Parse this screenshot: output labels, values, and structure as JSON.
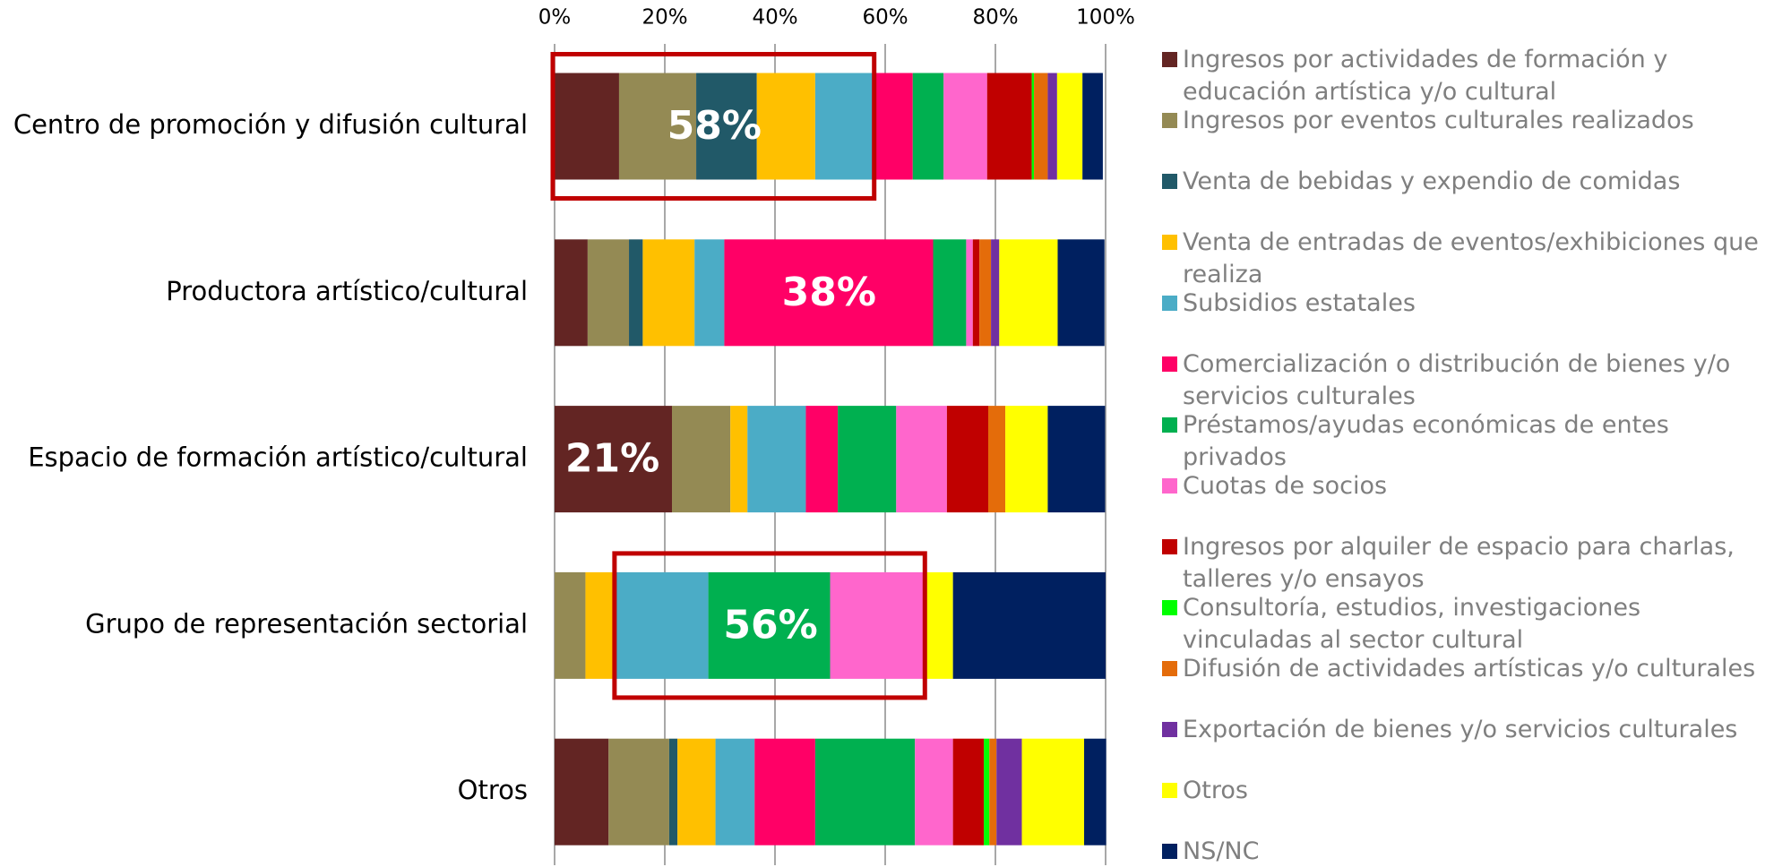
{
  "chart_data": {
    "type": "stacked_barh",
    "categories": [
      "Centro de promoción y difusión cultural",
      "Productora artístico/cultural",
      "Espacio de formación artístico/cultural",
      "Grupo de representación sectorial",
      "Otros"
    ],
    "series": [
      {
        "name": "Ingresos por actividades de formación y educación artística y/o cultural",
        "color": "#632523",
        "values": [
          11.7,
          6.0,
          21.3,
          0,
          9.8
        ]
      },
      {
        "name": "Ingresos por eventos culturales realizados",
        "color": "#948A54",
        "values": [
          14.0,
          7.5,
          10.6,
          5.6,
          11.0
        ]
      },
      {
        "name": "Venta de bebidas y expendio de comidas",
        "color": "#215968",
        "values": [
          11.0,
          2.5,
          0,
          0,
          1.5
        ]
      },
      {
        "name": "Venta de entradas de eventos/exhibiciones que realiza",
        "color": "#FFC000",
        "values": [
          10.6,
          9.4,
          3.1,
          5.6,
          6.9
        ]
      },
      {
        "name": "Subsidios estatales",
        "color": "#4BACC6",
        "values": [
          10.8,
          5.4,
          10.6,
          16.7,
          7.1
        ]
      },
      {
        "name": "Comercialización o distribución de bienes y/o servicios culturales",
        "color": "#FF0066",
        "values": [
          6.9,
          37.9,
          5.8,
          0,
          11.0
        ]
      },
      {
        "name": "Préstamos/ayudas económicas de entes privados",
        "color": "#00B050",
        "values": [
          5.6,
          6.0,
          10.6,
          22.1,
          18.1
        ]
      },
      {
        "name": "Cuotas de socios",
        "color": "#FF66CC",
        "values": [
          7.9,
          1.2,
          9.2,
          17.1,
          6.9
        ]
      },
      {
        "name": "Ingresos por alquiler de espacio para charlas, talleres y/o ensayos",
        "color": "#C00000",
        "values": [
          8.1,
          1.2,
          7.5,
          0,
          5.6
        ]
      },
      {
        "name": "Consultoría, estudios, investigaciones vinculadas al sector cultural",
        "color": "#00FF00",
        "values": [
          0.4,
          0,
          0,
          0,
          1.0
        ]
      },
      {
        "name": "Difusión de actividades artísticas y/o culturales",
        "color": "#E46C0A",
        "values": [
          2.5,
          2.1,
          3.1,
          0,
          1.3
        ]
      },
      {
        "name": "Exportación de bienes y/o servicios culturales",
        "color": "#7030A0",
        "values": [
          1.7,
          1.5,
          0,
          0,
          4.6
        ]
      },
      {
        "name": "Otros",
        "color": "#FFFF00",
        "values": [
          4.6,
          10.6,
          7.7,
          5.2,
          11.3
        ]
      },
      {
        "name": "NS/NC",
        "color": "#002060",
        "values": [
          3.7,
          8.5,
          10.4,
          27.7,
          4.0
        ]
      }
    ],
    "xlim": [
      0,
      100
    ],
    "xticks": [
      {
        "value": 0,
        "label": "0%"
      },
      {
        "value": 20,
        "label": "20%"
      },
      {
        "value": 40,
        "label": "40%"
      },
      {
        "value": 60,
        "label": "60%"
      },
      {
        "value": 80,
        "label": "80%"
      },
      {
        "value": 100,
        "label": "100%"
      }
    ],
    "grid": true,
    "legend": "right",
    "annotations": [
      {
        "label": "58%",
        "value": 58,
        "highlight": true
      },
      {
        "label": "38%",
        "value": 38,
        "highlight": false
      },
      {
        "label": "21%",
        "value": 21,
        "highlight": false
      },
      {
        "label": "56%",
        "value": 56,
        "highlight": true
      }
    ]
  }
}
